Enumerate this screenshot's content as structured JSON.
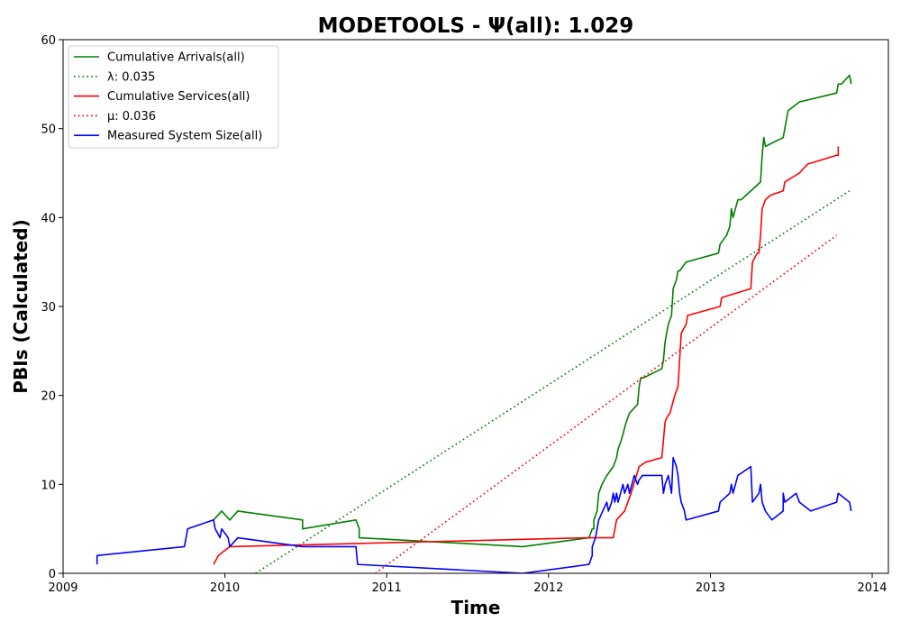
{
  "chart_data": {
    "type": "line",
    "title": "MODETOOLS -  Ψ(all): 1.029",
    "xlabel": "Time",
    "ylabel": "PBIs (Calculated)",
    "xlim": [
      2009.0,
      2014.1
    ],
    "ylim": [
      0,
      60
    ],
    "x_ticks": [
      2009,
      2010,
      2011,
      2012,
      2013,
      2014
    ],
    "x_tick_labels": [
      "2009",
      "2010",
      "2011",
      "2012",
      "2013",
      "2014"
    ],
    "y_ticks": [
      0,
      10,
      20,
      30,
      40,
      50,
      60
    ],
    "y_tick_labels": [
      "0",
      "10",
      "20",
      "30",
      "40",
      "50",
      "60"
    ],
    "grid": false,
    "legend_position": "top-left",
    "series": [
      {
        "name": "Cumulative Arrivals(all)",
        "color": "#008000",
        "style": "solid",
        "x": [
          2009.93,
          2009.98,
          2010.03,
          2010.08,
          2010.48,
          2010.48,
          2010.81,
          2010.83,
          2010.83,
          2011.84,
          2012.25,
          2012.27,
          2012.28,
          2012.28,
          2012.3,
          2012.31,
          2012.33,
          2012.36,
          2012.4,
          2012.42,
          2012.43,
          2012.45,
          2012.48,
          2012.5,
          2012.5,
          2012.55,
          2012.56,
          2012.57,
          2012.59,
          2012.7,
          2012.71,
          2012.72,
          2012.74,
          2012.76,
          2012.77,
          2012.77,
          2012.79,
          2012.8,
          2012.81,
          2012.85,
          2013.05,
          2013.06,
          2013.1,
          2013.12,
          2013.13,
          2013.14,
          2013.17,
          2013.19,
          2013.25,
          2013.31,
          2013.32,
          2013.33,
          2013.34,
          2013.45,
          2013.46,
          2013.47,
          2013.48,
          2013.55,
          2013.78,
          2013.79,
          2013.81,
          2013.86,
          2013.87
        ],
        "y": [
          6,
          7,
          6,
          7,
          6,
          5,
          6,
          5,
          4,
          3,
          4,
          5,
          5,
          6,
          7,
          9,
          10,
          11,
          12,
          13,
          14,
          15,
          17,
          18,
          18,
          19,
          21,
          22,
          22,
          23,
          24,
          26,
          28,
          29,
          32,
          32,
          33,
          34,
          34,
          35,
          36,
          37,
          38,
          39,
          41,
          40,
          42,
          42,
          43,
          44,
          47,
          49,
          48,
          49,
          50,
          51,
          52,
          53,
          54,
          55,
          55,
          56,
          55
        ]
      },
      {
        "name": "λ: 0.035",
        "color": "#008000",
        "style": "dotted",
        "x": [
          2010.19,
          2013.86
        ],
        "y": [
          0,
          43
        ]
      },
      {
        "name": "Cumulative Services(all)",
        "color": "#ff0000",
        "style": "solid",
        "x": [
          2009.93,
          2009.96,
          2010.03,
          2010.48,
          2010.48,
          2012.25,
          2012.27,
          2012.4,
          2012.41,
          2012.42,
          2012.47,
          2012.49,
          2012.51,
          2012.56,
          2012.6,
          2012.7,
          2012.71,
          2012.72,
          2012.73,
          2012.75,
          2012.78,
          2012.8,
          2012.82,
          2012.85,
          2012.86,
          2013.06,
          2013.07,
          2013.25,
          2013.26,
          2013.29,
          2013.3,
          2013.31,
          2013.32,
          2013.34,
          2013.37,
          2013.45,
          2013.46,
          2013.55,
          2013.6,
          2013.78,
          2013.79,
          2013.79
        ],
        "y": [
          1,
          2,
          3,
          3.2,
          3.2,
          4,
          4,
          4,
          5,
          6,
          7,
          8,
          9,
          12,
          12.5,
          13,
          15,
          17,
          17.5,
          18,
          20,
          21,
          27,
          28,
          29,
          30,
          31,
          32,
          35,
          36,
          36,
          38,
          41,
          42,
          42.5,
          43,
          44,
          45,
          46,
          47,
          47,
          48
        ]
      },
      {
        "name": "μ: 0.036",
        "color": "#ff0000",
        "style": "dotted",
        "x": [
          2010.93,
          2013.78
        ],
        "y": [
          0,
          38
        ]
      },
      {
        "name": "Measured System Size(all)",
        "color": "#0000ff",
        "style": "solid",
        "x": [
          2009.21,
          2009.21,
          2009.75,
          2009.76,
          2009.77,
          2009.93,
          2009.94,
          2009.97,
          2009.98,
          2010.02,
          2010.03,
          2010.08,
          2010.48,
          2010.81,
          2010.82,
          2011.84,
          2012.25,
          2012.27,
          2012.27,
          2012.29,
          2012.31,
          2012.36,
          2012.37,
          2012.39,
          2012.4,
          2012.41,
          2012.42,
          2012.43,
          2012.46,
          2012.47,
          2012.49,
          2012.5,
          2012.53,
          2012.55,
          2012.56,
          2012.58,
          2012.7,
          2012.71,
          2012.72,
          2012.74,
          2012.75,
          2012.76,
          2012.77,
          2012.79,
          2012.8,
          2012.81,
          2012.82,
          2012.84,
          2012.85,
          2013.05,
          2013.06,
          2013.12,
          2013.13,
          2013.14,
          2013.17,
          2013.25,
          2013.26,
          2013.3,
          2013.31,
          2013.32,
          2013.34,
          2013.38,
          2013.45,
          2013.45,
          2013.46,
          2013.53,
          2013.55,
          2013.62,
          2013.78,
          2013.79,
          2013.86,
          2013.87
        ],
        "y": [
          1,
          2,
          3,
          4,
          5,
          6,
          5,
          4,
          5,
          4,
          3,
          4,
          3,
          3,
          1,
          0,
          1,
          2,
          3,
          4,
          6,
          8,
          7,
          8,
          9,
          8,
          9,
          8,
          10,
          9,
          10,
          9,
          11,
          10,
          10.5,
          11,
          11,
          9,
          10,
          11,
          10,
          9,
          13,
          12,
          11,
          9,
          8,
          7,
          6,
          7,
          8,
          9,
          10,
          9,
          11,
          12,
          8,
          9,
          10,
          8,
          7,
          6,
          7,
          9,
          8,
          9,
          8,
          7,
          8,
          9,
          8,
          7
        ]
      }
    ],
    "legend": [
      {
        "label": "Cumulative Arrivals(all)",
        "color": "#008000",
        "style": "solid"
      },
      {
        "label": "λ: 0.035",
        "color": "#008000",
        "style": "dotted"
      },
      {
        "label": "Cumulative Services(all)",
        "color": "#ff0000",
        "style": "solid"
      },
      {
        "label": "μ: 0.036",
        "color": "#ff0000",
        "style": "dotted"
      },
      {
        "label": "Measured System Size(all)",
        "color": "#0000ff",
        "style": "solid"
      }
    ]
  }
}
